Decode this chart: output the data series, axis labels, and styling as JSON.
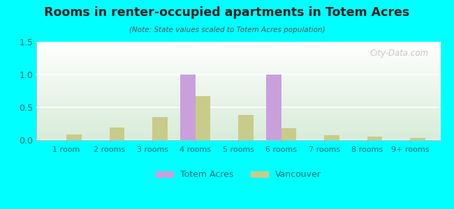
{
  "title": "Rooms in renter-occupied apartments in Totem Acres",
  "subtitle": "(Note: State values scaled to Totem Acres population)",
  "categories": [
    "1 room",
    "2 rooms",
    "3 rooms",
    "4 rooms",
    "5 rooms",
    "6 rooms",
    "7 rooms",
    "8 rooms",
    "9+ rooms"
  ],
  "totem_acres": [
    0,
    0,
    0,
    1.0,
    0,
    1.0,
    0,
    0,
    0
  ],
  "vancouver": [
    0.08,
    0.19,
    0.35,
    0.67,
    0.38,
    0.18,
    0.07,
    0.05,
    0.03
  ],
  "totem_color": "#c9a0dc",
  "vancouver_color": "#c8cc8a",
  "bg_color": "#00ffff",
  "ylim": [
    0,
    1.5
  ],
  "yticks": [
    0,
    0.5,
    1,
    1.5
  ],
  "bar_width": 0.35,
  "legend_labels": [
    "Totem Acres",
    "Vancouver"
  ],
  "watermark": "City-Data.com"
}
